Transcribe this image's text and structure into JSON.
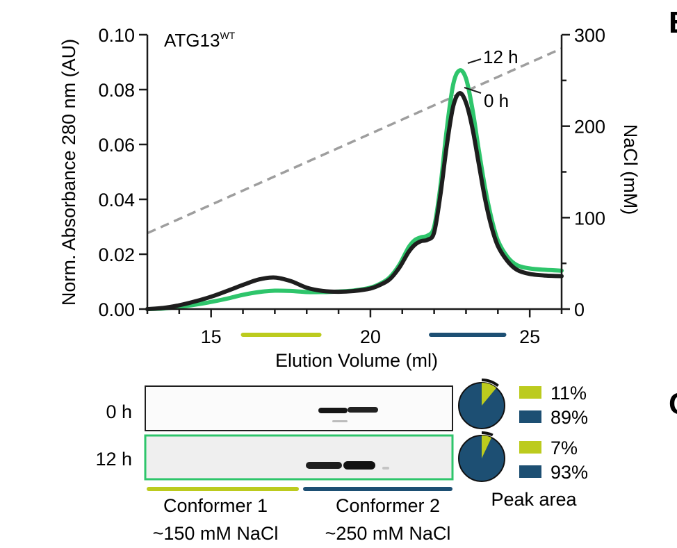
{
  "panel_letters": [
    "B",
    "C"
  ],
  "chart_data": {
    "type": "line",
    "title": "ATG13",
    "title_superscript": "WT",
    "xlabel": "Elution Volume (ml)",
    "ylabel": "Norm. Absorbance 280 nm (AU)",
    "y2label": "NaCl (mM)",
    "xlim": [
      13,
      26
    ],
    "ylim": [
      0,
      0.1
    ],
    "y2lim": [
      0,
      300
    ],
    "xticks": [
      15,
      20,
      25
    ],
    "yticks": [
      0.0,
      0.02,
      0.04,
      0.06,
      0.08,
      0.1
    ],
    "ytick_labels": [
      "0.00",
      "0.02",
      "0.04",
      "0.06",
      "0.08",
      "0.10"
    ],
    "y2ticks": [
      0,
      100,
      200,
      300
    ],
    "y2tick_labels": [
      "0",
      "100",
      "200",
      "300"
    ],
    "grid": false,
    "series": [
      {
        "name": "12 h",
        "color": "#2ec56b",
        "x": [
          13,
          13.5,
          14,
          14.5,
          15,
          15.5,
          16,
          16.5,
          17,
          17.5,
          18,
          18.5,
          19,
          19.5,
          20,
          20.3,
          20.6,
          20.9,
          21.2,
          21.4,
          21.6,
          21.8,
          22.0,
          22.2,
          22.4,
          22.6,
          22.8,
          23.0,
          23.2,
          23.4,
          23.6,
          23.8,
          24.0,
          24.3,
          24.6,
          25.0,
          25.5,
          26
        ],
        "y": [
          0,
          0.0002,
          0.0008,
          0.0016,
          0.0026,
          0.0038,
          0.0052,
          0.0062,
          0.0067,
          0.0066,
          0.0062,
          0.0062,
          0.0064,
          0.0068,
          0.0078,
          0.0092,
          0.0115,
          0.016,
          0.0225,
          0.0252,
          0.0262,
          0.0268,
          0.03,
          0.045,
          0.066,
          0.082,
          0.087,
          0.084,
          0.073,
          0.058,
          0.044,
          0.033,
          0.025,
          0.019,
          0.016,
          0.0148,
          0.0143,
          0.014
        ]
      },
      {
        "name": "0 h",
        "color": "#1e1e1e",
        "x": [
          13,
          13.5,
          14,
          14.5,
          15,
          15.5,
          16,
          16.5,
          17,
          17.5,
          18,
          18.5,
          19,
          19.5,
          20,
          20.3,
          20.6,
          20.9,
          21.2,
          21.4,
          21.6,
          21.8,
          22.0,
          22.2,
          22.4,
          22.6,
          22.8,
          23.0,
          23.2,
          23.4,
          23.6,
          23.8,
          24.0,
          24.3,
          24.6,
          25.0,
          25.5,
          26
        ],
        "y": [
          0,
          0.0004,
          0.0014,
          0.0028,
          0.0045,
          0.0066,
          0.0088,
          0.0108,
          0.0115,
          0.0102,
          0.0078,
          0.0066,
          0.0063,
          0.0066,
          0.0075,
          0.0088,
          0.0108,
          0.015,
          0.0208,
          0.0235,
          0.0248,
          0.0253,
          0.028,
          0.042,
          0.06,
          0.074,
          0.0787,
          0.0752,
          0.066,
          0.053,
          0.04,
          0.03,
          0.023,
          0.0175,
          0.0143,
          0.0128,
          0.0122,
          0.012
        ]
      },
      {
        "name": "NaCl gradient",
        "color": "#9e9e9e",
        "dashed": true,
        "axis": "right",
        "x": [
          13,
          26
        ],
        "y": [
          83,
          285
        ]
      }
    ],
    "annotations": [
      {
        "text": "12 h",
        "series": "12 h"
      },
      {
        "text": "0 h",
        "series": "0 h"
      }
    ],
    "fraction_bars": [
      {
        "name": "Conformer 1 fractions",
        "color": "#bccb1e",
        "x": [
          16,
          18.4
        ]
      },
      {
        "name": "Conformer 2 fractions",
        "color": "#1d4f73",
        "x": [
          21.9,
          24.2
        ]
      }
    ]
  },
  "blot": {
    "rows": [
      {
        "label": "0 h",
        "border_color": "#1e1e1e"
      },
      {
        "label": "12 h",
        "border_color": "#2ec56b"
      }
    ],
    "conformers": [
      {
        "name": "Conformer 1",
        "salt": "~150 mM NaCl",
        "color": "#bccb1e"
      },
      {
        "name": "Conformer 2",
        "salt": "~250 mM NaCl",
        "color": "#1d4f73"
      }
    ]
  },
  "peak_area": {
    "label": "Peak area",
    "colors": {
      "conformer_1": "#bccb1e",
      "conformer_2": "#1d4f73"
    },
    "rows": [
      {
        "time": "0 h",
        "conformer_1": 11,
        "conformer_2": 89,
        "conformer_1_label": "11%",
        "conformer_2_label": "89%"
      },
      {
        "time": "12 h",
        "conformer_1": 7,
        "conformer_2": 93,
        "conformer_1_label": "7%",
        "conformer_2_label": "93%"
      }
    ]
  }
}
